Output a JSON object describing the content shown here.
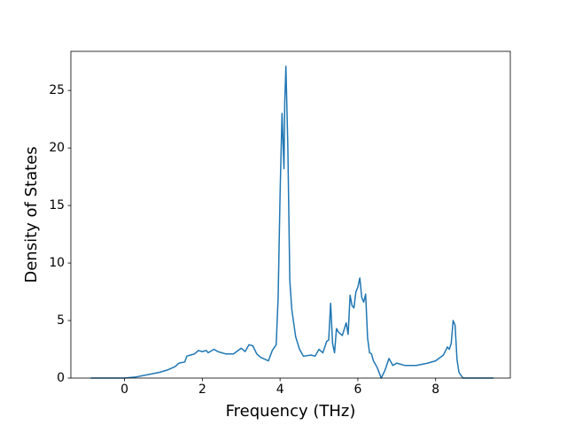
{
  "chart_data": {
    "type": "line",
    "x_label": "Frequency (THz)",
    "y_label": "Density of States",
    "xlim": [
      -1.38,
      9.92
    ],
    "ylim": [
      0,
      28.4
    ],
    "xticks": [
      0,
      2,
      4,
      6,
      8
    ],
    "yticks": [
      0,
      5,
      10,
      15,
      20,
      25
    ],
    "x": [
      -0.87,
      0,
      0.3,
      0.6,
      0.9,
      1.1,
      1.3,
      1.4,
      1.55,
      1.6,
      1.7,
      1.8,
      1.9,
      2.0,
      2.1,
      2.15,
      2.3,
      2.4,
      2.6,
      2.8,
      3.0,
      3.1,
      3.2,
      3.3,
      3.4,
      3.5,
      3.7,
      3.8,
      3.9,
      3.95,
      4.0,
      4.05,
      4.1,
      4.12,
      4.15,
      4.2,
      4.25,
      4.3,
      4.4,
      4.5,
      4.6,
      4.8,
      4.9,
      5.0,
      5.1,
      5.2,
      5.25,
      5.3,
      5.35,
      5.4,
      5.45,
      5.5,
      5.6,
      5.7,
      5.75,
      5.8,
      5.85,
      5.9,
      5.95,
      6.0,
      6.05,
      6.1,
      6.15,
      6.2,
      6.25,
      6.3,
      6.35,
      6.4,
      6.5,
      6.6,
      6.7,
      6.8,
      6.9,
      7.0,
      7.2,
      7.5,
      7.8,
      8.0,
      8.2,
      8.3,
      8.35,
      8.4,
      8.45,
      8.5,
      8.55,
      8.6,
      8.7,
      9.49
    ],
    "series": [
      {
        "color": "#1f77b4",
        "values": [
          0,
          0,
          0.1,
          0.3,
          0.5,
          0.7,
          1.0,
          1.3,
          1.4,
          1.9,
          2.0,
          2.1,
          2.4,
          2.3,
          2.4,
          2.2,
          2.5,
          2.3,
          2.1,
          2.1,
          2.6,
          2.3,
          2.9,
          2.8,
          2.1,
          1.8,
          1.5,
          2.4,
          2.9,
          7,
          16,
          23,
          18.2,
          24,
          27.1,
          20,
          8.5,
          6,
          3.6,
          2.5,
          1.9,
          2.0,
          1.9,
          2.5,
          2.2,
          3.2,
          3.3,
          6.5,
          3,
          2.2,
          4.3,
          4,
          3.7,
          4.8,
          3.8,
          7.2,
          6.3,
          6.1,
          7.5,
          7.9,
          8.7,
          7.0,
          6.6,
          7.3,
          3.5,
          2.2,
          2.1,
          1.5,
          0.9,
          0,
          0.7,
          1.7,
          1.1,
          1.3,
          1.1,
          1.1,
          1.3,
          1.5,
          2.0,
          2.7,
          2.5,
          3.0,
          5.0,
          4.6,
          1.6,
          0.5,
          0,
          0
        ]
      }
    ]
  }
}
